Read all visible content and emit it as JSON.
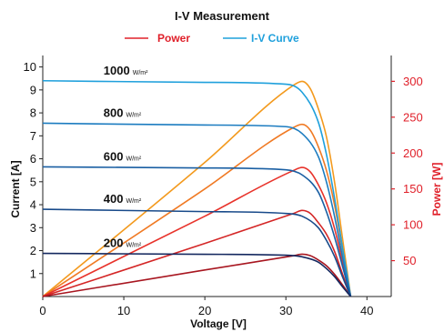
{
  "chart_data": {
    "type": "line",
    "title": "I-V Measurement",
    "legend": {
      "placement": "top",
      "items": [
        {
          "label": "Power",
          "color": "#e0202a"
        },
        {
          "label": "I-V Curve",
          "color": "#1fa0dc"
        }
      ]
    },
    "xlabel": "Voltage [V]",
    "ylabel_left": "Current [A]",
    "ylabel_right": "Power [W]",
    "xlim": [
      0,
      43
    ],
    "ylim_left": [
      0,
      10.5
    ],
    "ylim_right": [
      0,
      336
    ],
    "x_ticks": [
      "0",
      "10",
      "20",
      "30",
      "40"
    ],
    "y_left_ticks": [
      "1",
      "2",
      "3",
      "4",
      "5",
      "6",
      "7",
      "8",
      "9",
      "10"
    ],
    "y_right_ticks": [
      "50",
      "100",
      "150",
      "200",
      "250",
      "300"
    ],
    "grid": false,
    "unit_label": "W/m²",
    "series": [
      {
        "irradiance": "1000",
        "iv_color": "#1fa0dc",
        "power_color": "#f39a1e",
        "iv": {
          "x": [
            0,
            20,
            30,
            32,
            34,
            35,
            36,
            37,
            38
          ],
          "y": [
            9.4,
            9.33,
            9.25,
            8.9,
            7.6,
            6.2,
            4.3,
            2.1,
            0
          ]
        },
        "power": {
          "x": [
            0,
            20,
            31,
            32,
            33,
            34,
            35,
            36,
            37,
            38
          ],
          "y": [
            0,
            187,
            295,
            300,
            290,
            262,
            223,
            160,
            80,
            0
          ]
        }
      },
      {
        "irradiance": "800",
        "iv_color": "#1c7cc0",
        "power_color": "#f07a24",
        "iv": {
          "x": [
            0,
            20,
            30,
            32,
            34,
            35,
            36,
            37,
            38
          ],
          "y": [
            7.55,
            7.47,
            7.4,
            7.1,
            6.1,
            5.0,
            3.5,
            1.7,
            0
          ]
        },
        "power": {
          "x": [
            0,
            20,
            31,
            32,
            33,
            34,
            35,
            36,
            37,
            38
          ],
          "y": [
            0,
            150,
            236,
            240,
            232,
            209,
            176,
            128,
            64,
            0
          ]
        }
      },
      {
        "irradiance": "600",
        "iv_color": "#1a5fa3",
        "power_color": "#e8332b",
        "iv": {
          "x": [
            0,
            20,
            30,
            32,
            34,
            35,
            36,
            37,
            38
          ],
          "y": [
            5.65,
            5.6,
            5.52,
            5.3,
            4.55,
            3.7,
            2.6,
            1.3,
            0
          ]
        },
        "power": {
          "x": [
            0,
            20,
            31,
            32,
            33,
            34,
            35,
            36,
            37,
            38
          ],
          "y": [
            0,
            112,
            176,
            180,
            174,
            156,
            131,
            95,
            48,
            0
          ]
        }
      },
      {
        "irradiance": "400",
        "iv_color": "#184a8a",
        "power_color": "#d42626",
        "iv": {
          "x": [
            0,
            20,
            30,
            32,
            34,
            35,
            36,
            37,
            38
          ],
          "y": [
            3.8,
            3.7,
            3.62,
            3.5,
            3.0,
            2.45,
            1.75,
            0.85,
            0
          ]
        },
        "power": {
          "x": [
            0,
            20,
            31,
            32,
            33,
            34,
            35,
            36,
            37,
            38
          ],
          "y": [
            0,
            74,
            116,
            120,
            116,
            103,
            87,
            63,
            31,
            0
          ]
        }
      },
      {
        "irradiance": "200",
        "iv_color": "#14285f",
        "power_color": "#a81620",
        "iv": {
          "x": [
            0,
            20,
            30,
            32,
            34,
            35,
            36,
            37,
            38
          ],
          "y": [
            1.88,
            1.84,
            1.8,
            1.73,
            1.5,
            1.22,
            0.87,
            0.42,
            0
          ]
        },
        "power": {
          "x": [
            0,
            20,
            31,
            32,
            33,
            34,
            35,
            36,
            37,
            38
          ],
          "y": [
            0,
            37,
            57,
            59,
            57,
            51,
            43,
            31,
            16,
            0
          ]
        }
      }
    ]
  }
}
